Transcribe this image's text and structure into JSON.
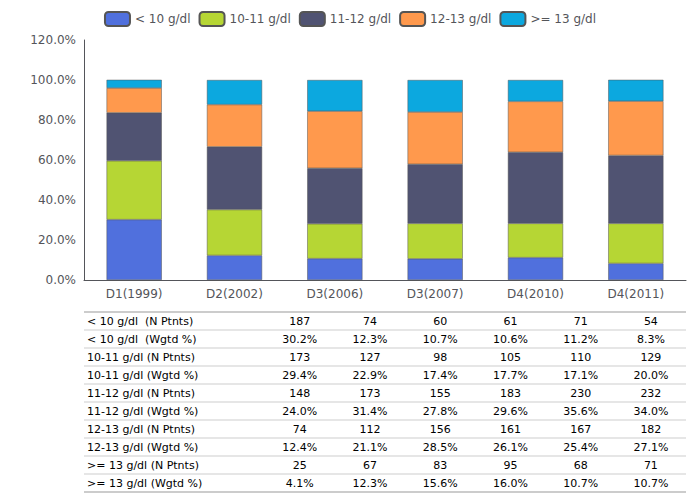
{
  "chart_data": {
    "type": "bar",
    "stacked": true,
    "categories": [
      "D1(1999)",
      "D2(2002)",
      "D3(2006)",
      "D3(2007)",
      "D4(2010)",
      "D4(2011)"
    ],
    "series": [
      {
        "name": "< 10 g/dl",
        "values": [
          30.2,
          12.3,
          10.7,
          10.6,
          11.2,
          8.3
        ]
      },
      {
        "name": "10-11 g/dl",
        "values": [
          29.4,
          22.9,
          17.4,
          17.7,
          17.1,
          20.0
        ]
      },
      {
        "name": "11-12 g/dl",
        "values": [
          24.0,
          31.4,
          27.8,
          29.6,
          35.6,
          34.0
        ]
      },
      {
        "name": "12-13 g/dl",
        "values": [
          12.4,
          21.1,
          28.5,
          26.1,
          25.4,
          27.1
        ]
      },
      {
        "name": ">= 13 g/dl",
        "values": [
          4.1,
          12.3,
          15.6,
          16.0,
          10.7,
          10.7
        ]
      }
    ],
    "ylim": [
      0,
      120
    ],
    "yticks": [
      {
        "value": 0,
        "label": "0.0%"
      },
      {
        "value": 20,
        "label": "20.0%"
      },
      {
        "value": 40,
        "label": "40.0%"
      },
      {
        "value": 60,
        "label": "60.0%"
      },
      {
        "value": 80,
        "label": "80.0%"
      },
      {
        "value": 100,
        "label": "100.0%"
      },
      {
        "value": 120,
        "label": "120.0%"
      }
    ],
    "grid": false,
    "legend": "top",
    "table_rows": [
      [
        "< 10 g/dl  (N Ptnts)",
        "187",
        "74",
        "60",
        "61",
        "71",
        "54"
      ],
      [
        "< 10 g/dl  (Wgtd %)",
        "30.2%",
        "12.3%",
        "10.7%",
        "10.6%",
        "11.2%",
        "8.3%"
      ],
      [
        "10-11 g/dl (N Ptnts)",
        "173",
        "127",
        "98",
        "105",
        "110",
        "129"
      ],
      [
        "10-11 g/dl (Wgtd %)",
        "29.4%",
        "22.9%",
        "17.4%",
        "17.7%",
        "17.1%",
        "20.0%"
      ],
      [
        "11-12 g/dl (N Ptnts)",
        "148",
        "173",
        "155",
        "183",
        "230",
        "232"
      ],
      [
        "11-12 g/dl (Wgtd %)",
        "24.0%",
        "31.4%",
        "27.8%",
        "29.6%",
        "35.6%",
        "34.0%"
      ],
      [
        "12-13 g/dl (N Ptnts)",
        "74",
        "112",
        "156",
        "161",
        "167",
        "182"
      ],
      [
        "12-13 g/dl (Wgtd %)",
        "12.4%",
        "21.1%",
        "28.5%",
        "26.1%",
        "25.4%",
        "27.1%"
      ],
      [
        ">= 13 g/dl (N Ptnts)",
        "25",
        "67",
        "83",
        "95",
        "68",
        "71"
      ],
      [
        ">= 13 g/dl (Wgtd %)",
        "4.1%",
        "12.3%",
        "15.6%",
        "16.0%",
        "10.7%",
        "10.7%"
      ]
    ]
  }
}
